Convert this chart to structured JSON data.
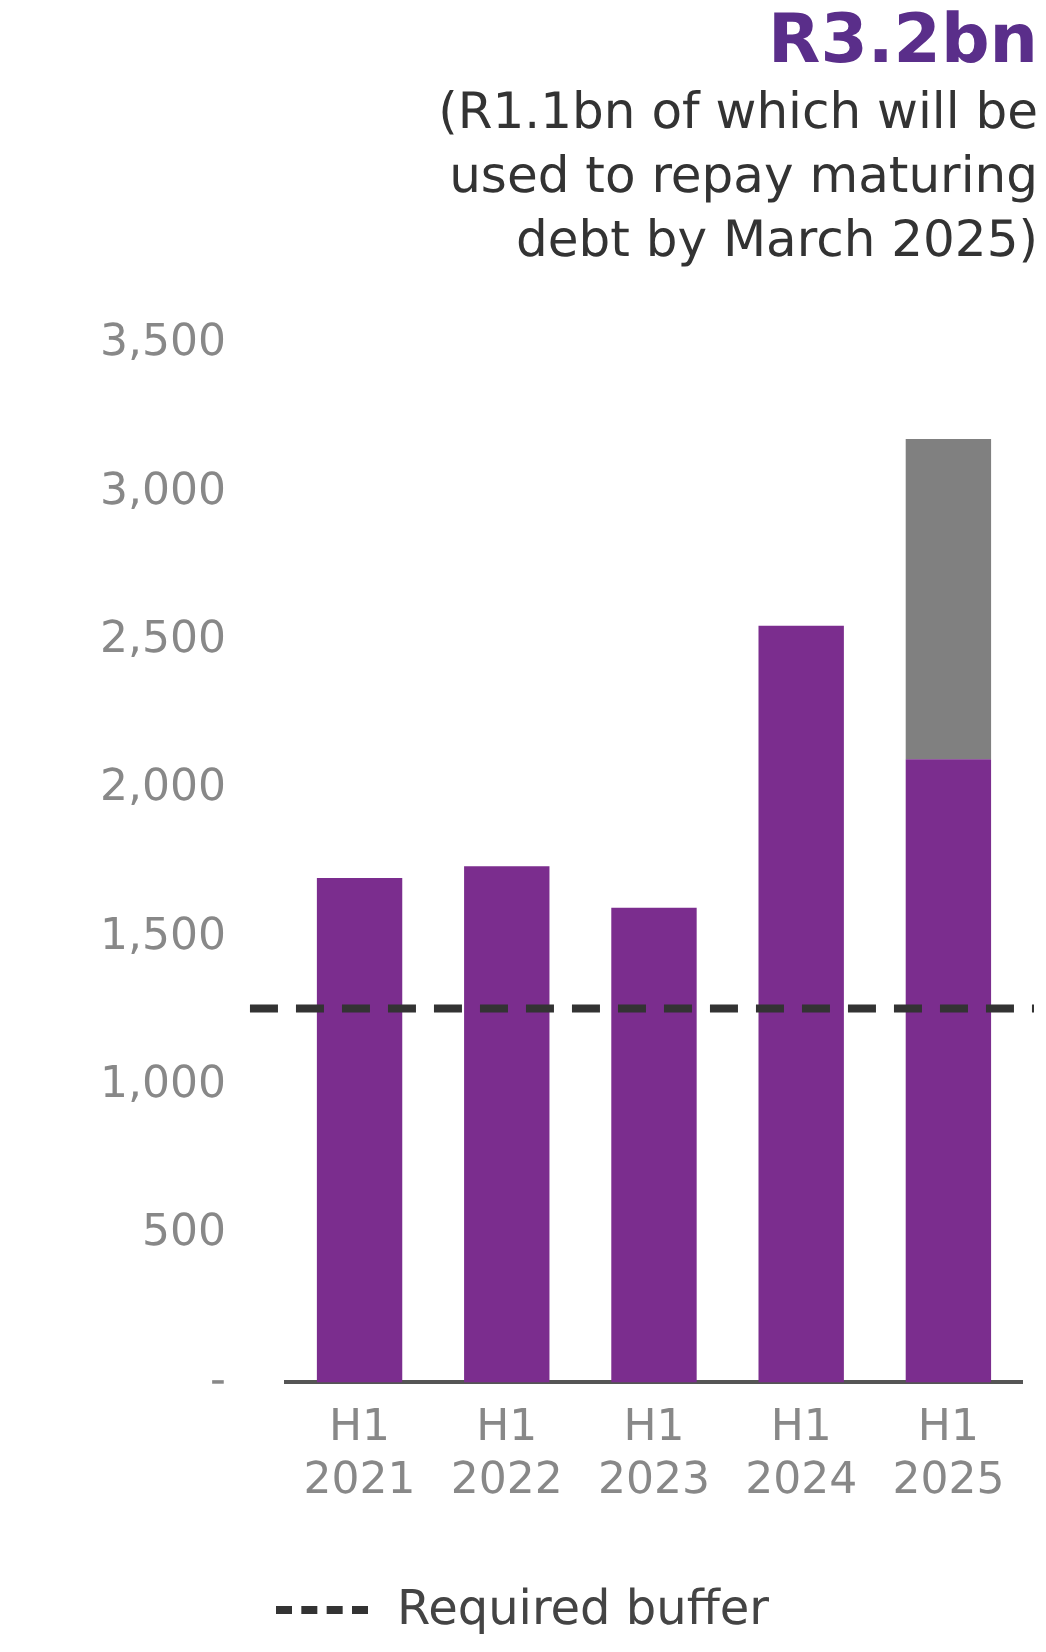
{
  "chart_data": {
    "type": "bar",
    "title": "R3.2bn",
    "subtitle": "(R1.1bn of which will be used to repay maturing debt by March 2025)",
    "categories": [
      "H1 2021",
      "H1 2022",
      "H1 2023",
      "H1 2024",
      "H1 2025"
    ],
    "stacked": true,
    "series": [
      {
        "color": "#7b2d8e",
        "values": [
          1700,
          1740,
          1600,
          2550,
          2100
        ]
      },
      {
        "color": "#808080",
        "values": [
          null,
          null,
          null,
          null,
          1080
        ]
      }
    ],
    "ylim": [
      0,
      3500
    ],
    "yticks": [
      {
        "value": 0,
        "label": "-"
      },
      {
        "value": 500,
        "label": "500"
      },
      {
        "value": 1000,
        "label": "1,000"
      },
      {
        "value": 1500,
        "label": "1,500"
      },
      {
        "value": 2000,
        "label": "2,000"
      },
      {
        "value": 2500,
        "label": "2,500"
      },
      {
        "value": 3000,
        "label": "3,000"
      },
      {
        "value": 3500,
        "label": "3,500"
      }
    ],
    "ref_lines": [
      {
        "axis": "y",
        "value": 1260,
        "label": "Required buffer",
        "color": "#333333",
        "line_style": "dashed"
      }
    ],
    "grid": false,
    "legend": "bottom"
  }
}
